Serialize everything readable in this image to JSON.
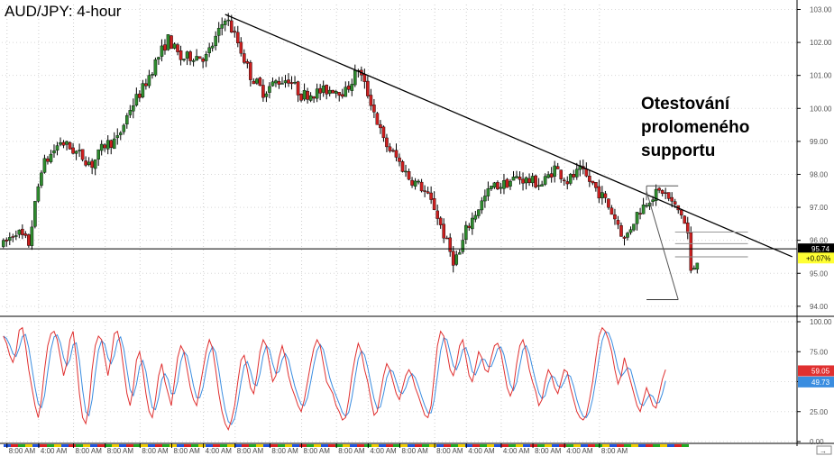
{
  "chart_data": {
    "type": "candlestick",
    "title": "AUD/JPY: 4-hour",
    "annotation": "Otestování\nprolomeného\nsupportu",
    "price_axis": {
      "ylim": [
        93.75,
        103.15
      ],
      "ticks": [
        "103.00",
        "102.00",
        "101.00",
        "100.00",
        "99.00",
        "98.00",
        "97.00",
        "96.00",
        "95.00",
        "94.00"
      ],
      "tick_values": [
        103,
        102,
        101,
        100,
        99,
        98,
        97,
        96,
        95,
        94
      ]
    },
    "current_price": {
      "label": "95.74",
      "value": 95.74
    },
    "change_badge": {
      "label": "+0.07%",
      "value": 95.6
    },
    "support_level": 95.74,
    "trendline": {
      "start": {
        "bar": 70,
        "price": 102.85
      },
      "end": {
        "bar": 249,
        "price": 95.5
      }
    },
    "candle_count": 220,
    "price_path": [
      {
        "bar": 0,
        "price": 95.85
      },
      {
        "bar": 4,
        "price": 96.3
      },
      {
        "bar": 8,
        "price": 95.9
      },
      {
        "bar": 12,
        "price": 98.2
      },
      {
        "bar": 18,
        "price": 99.0
      },
      {
        "bar": 24,
        "price": 98.6
      },
      {
        "bar": 28,
        "price": 98.3
      },
      {
        "bar": 32,
        "price": 98.9
      },
      {
        "bar": 36,
        "price": 99.05
      },
      {
        "bar": 40,
        "price": 100.0
      },
      {
        "bar": 44,
        "price": 100.6
      },
      {
        "bar": 48,
        "price": 101.4
      },
      {
        "bar": 52,
        "price": 102.1
      },
      {
        "bar": 56,
        "price": 101.5
      },
      {
        "bar": 60,
        "price": 101.6
      },
      {
        "bar": 64,
        "price": 101.55
      },
      {
        "bar": 68,
        "price": 102.3
      },
      {
        "bar": 70,
        "price": 102.8
      },
      {
        "bar": 74,
        "price": 102.0
      },
      {
        "bar": 78,
        "price": 101.0
      },
      {
        "bar": 82,
        "price": 100.5
      },
      {
        "bar": 86,
        "price": 100.8
      },
      {
        "bar": 90,
        "price": 100.9
      },
      {
        "bar": 94,
        "price": 100.4
      },
      {
        "bar": 100,
        "price": 100.5
      },
      {
        "bar": 104,
        "price": 100.6
      },
      {
        "bar": 108,
        "price": 100.5
      },
      {
        "bar": 112,
        "price": 101.2
      },
      {
        "bar": 116,
        "price": 100.2
      },
      {
        "bar": 120,
        "price": 99.0
      },
      {
        "bar": 124,
        "price": 98.5
      },
      {
        "bar": 128,
        "price": 97.9
      },
      {
        "bar": 132,
        "price": 97.6
      },
      {
        "bar": 136,
        "price": 97.0
      },
      {
        "bar": 140,
        "price": 95.9
      },
      {
        "bar": 142,
        "price": 95.4
      },
      {
        "bar": 144,
        "price": 95.6
      },
      {
        "bar": 146,
        "price": 96.3
      },
      {
        "bar": 150,
        "price": 97.0
      },
      {
        "bar": 154,
        "price": 97.6
      },
      {
        "bar": 158,
        "price": 97.7
      },
      {
        "bar": 162,
        "price": 97.9
      },
      {
        "bar": 166,
        "price": 97.8
      },
      {
        "bar": 170,
        "price": 97.7
      },
      {
        "bar": 174,
        "price": 98.2
      },
      {
        "bar": 178,
        "price": 97.8
      },
      {
        "bar": 182,
        "price": 98.1
      },
      {
        "bar": 186,
        "price": 97.7
      },
      {
        "bar": 190,
        "price": 97.2
      },
      {
        "bar": 194,
        "price": 96.5
      },
      {
        "bar": 196,
        "price": 96.0
      },
      {
        "bar": 200,
        "price": 96.8
      },
      {
        "bar": 204,
        "price": 97.3
      },
      {
        "bar": 208,
        "price": 97.5
      },
      {
        "bar": 212,
        "price": 97.0
      },
      {
        "bar": 214,
        "price": 96.8
      },
      {
        "bar": 216,
        "price": 96.2
      },
      {
        "bar": 217,
        "price": 95.0
      },
      {
        "bar": 218,
        "price": 95.2
      },
      {
        "bar": 220,
        "price": 95.7
      }
    ],
    "fib_levels": [
      97.65,
      96.25,
      95.9,
      95.5,
      94.2
    ],
    "oscillator": {
      "ylim": [
        0,
        100
      ],
      "ticks": [
        "100.00",
        "75.00",
        "50.00",
        "25.00",
        "0.00"
      ],
      "tick_values": [
        100,
        75,
        50,
        25,
        0
      ],
      "series": [
        {
          "label": "59.05",
          "value": 59.05,
          "color": "#e03030"
        },
        {
          "label": "49.73",
          "value": 49.73,
          "color": "#3a8de0"
        }
      ],
      "fast_path": [
        88,
        82,
        72,
        66,
        75,
        93,
        95,
        80,
        60,
        45,
        30,
        20,
        35,
        60,
        80,
        90,
        92,
        85,
        70,
        55,
        65,
        85,
        92,
        70,
        40,
        20,
        15,
        30,
        60,
        80,
        88,
        85,
        70,
        55,
        70,
        90,
        92,
        80,
        60,
        40,
        30,
        45,
        68,
        75,
        60,
        40,
        25,
        20,
        35,
        55,
        65,
        50,
        40,
        30,
        50,
        70,
        80,
        75,
        60,
        45,
        35,
        30,
        45,
        60,
        75,
        85,
        78,
        60,
        40,
        25,
        15,
        10,
        18,
        30,
        50,
        68,
        72,
        60,
        45,
        40,
        55,
        75,
        85,
        80,
        65,
        50,
        55,
        70,
        80,
        70,
        55,
        45,
        38,
        30,
        25,
        35,
        50,
        65,
        78,
        85,
        80,
        65,
        50,
        45,
        40,
        30,
        25,
        18,
        20,
        35,
        55,
        70,
        82,
        75,
        60,
        50,
        35,
        22,
        25,
        40,
        55,
        65,
        60,
        50,
        40,
        35,
        45,
        55,
        60,
        55,
        45,
        38,
        30,
        22,
        20,
        30,
        55,
        80,
        92,
        88,
        75,
        60,
        55,
        65,
        80,
        85,
        70,
        55,
        50,
        62,
        75,
        70,
        60,
        58,
        70,
        80,
        82,
        75,
        60,
        45,
        38,
        45,
        65,
        80,
        85,
        75,
        60,
        50,
        42,
        30,
        35,
        50,
        60,
        55,
        45,
        40,
        50,
        60,
        58,
        45,
        35,
        25,
        20,
        18,
        22,
        35,
        50,
        70,
        88,
        95,
        92,
        85,
        75,
        60,
        48,
        55,
        70,
        60,
        50,
        40,
        30,
        25,
        35,
        45,
        38,
        30,
        28,
        40,
        52,
        60
      ]
    },
    "x_ticks": [
      "8:00 AM",
      "4:00 AM",
      "8:00 AM",
      "8:00 AM",
      "8:00 AM",
      "8:00 AM",
      "4:00 AM",
      "8:00 AM",
      "8:00 AM",
      "8:00 AM",
      "8:00 AM",
      "4:00 AM",
      "8:00 AM",
      "8:00 AM",
      "4:00 AM",
      "4:00 AM",
      "8:00 AM",
      "4:00 AM",
      "8:00 AM"
    ],
    "x_tick_bars": [
      0,
      10,
      21,
      31,
      42,
      52,
      62,
      72,
      83,
      93,
      104,
      114,
      124,
      135,
      145,
      156,
      166,
      176,
      187
    ],
    "colors": {
      "up": "#2e8b2e",
      "down": "#cc1f1f",
      "wick": "#000000",
      "price_badge": "#000000",
      "change_badge": "#ffff33"
    }
  }
}
